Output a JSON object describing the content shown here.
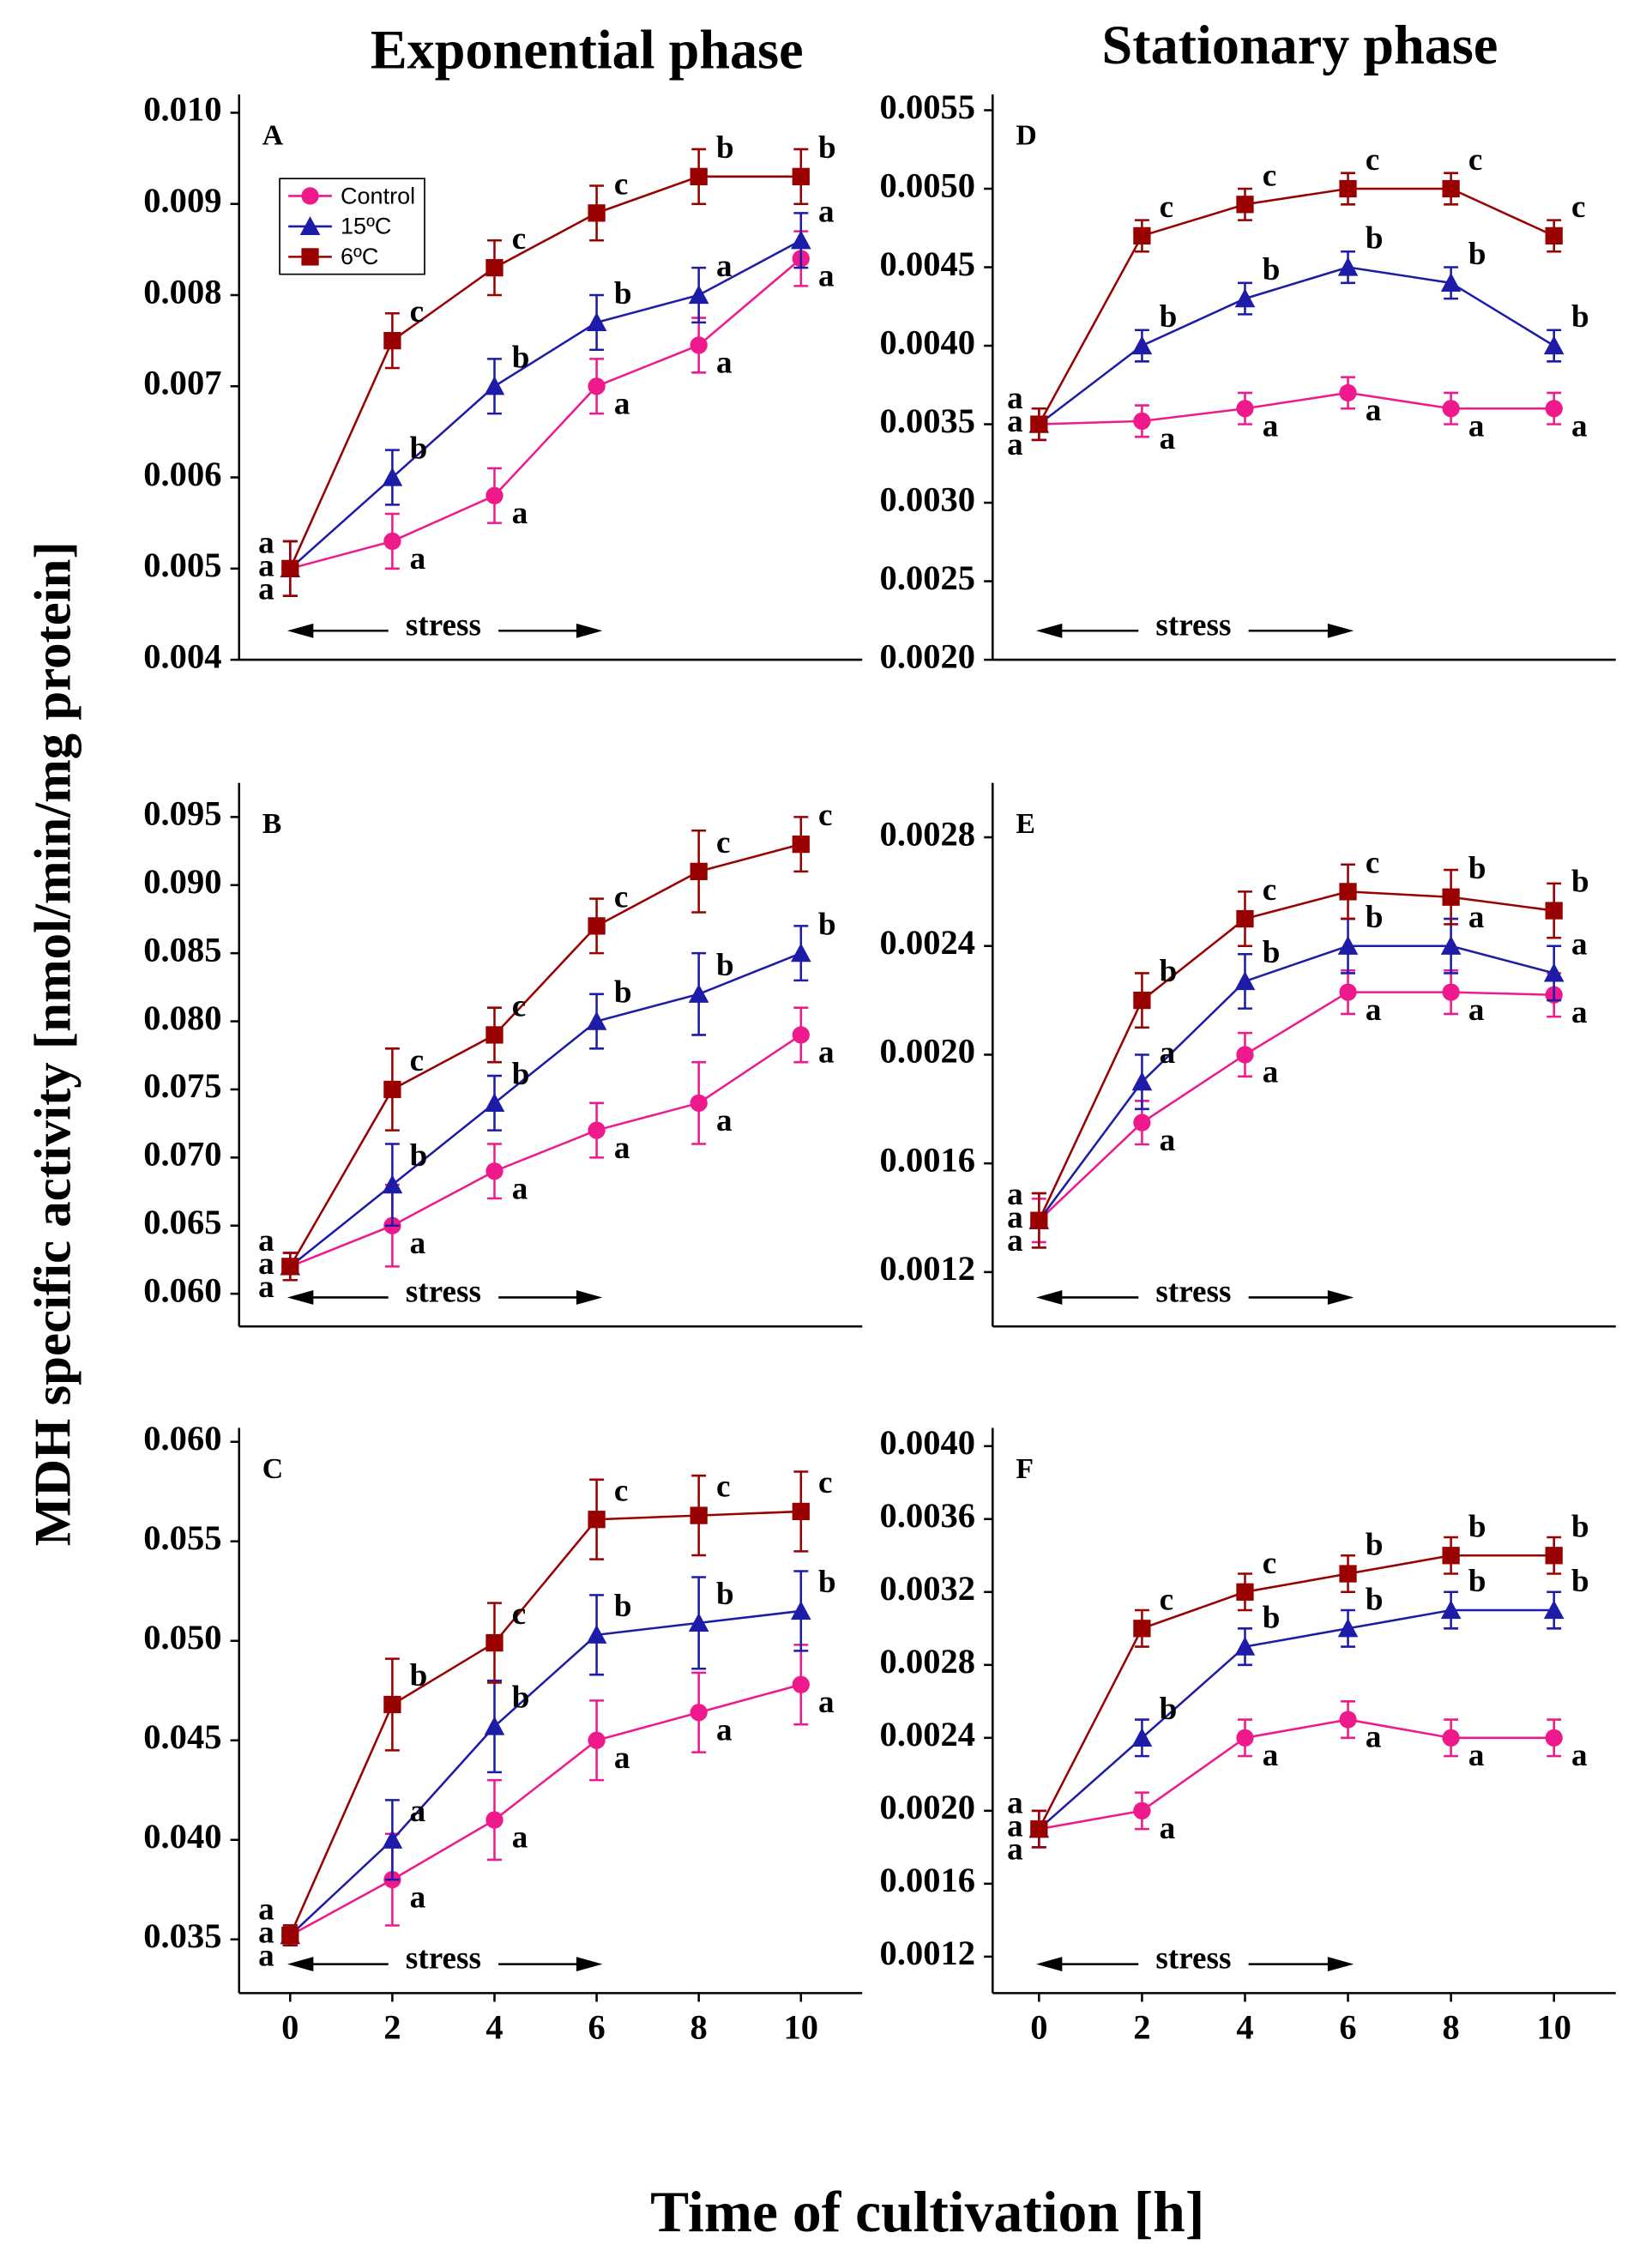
{
  "column_titles": [
    "Exponential phase",
    "Stationary phase"
  ],
  "y_label": "MDH specific activity [nmol/min/mg protein]",
  "x_label": "Time of cultivation [h]",
  "chart_data": [
    {
      "type": "line",
      "panel_label": "A",
      "annotation": "stress",
      "legend": "upper left",
      "x": [
        0,
        2,
        4,
        6,
        8,
        10
      ],
      "xlim": [
        -1,
        11.2
      ],
      "ylim": [
        0.004,
        0.0102
      ],
      "yticks": [
        0.004,
        0.005,
        0.006,
        0.007,
        0.008,
        0.009,
        {
          "value": 0.01,
          "label": "0.010"
        }
      ],
      "series": [
        {
          "name": "Control",
          "color": "#ee1a8c",
          "marker": "circle",
          "values": [
            0.005,
            0.0053,
            0.0058,
            0.007,
            0.00745,
            0.0084
          ],
          "errors": [
            0.0003,
            0.0003,
            0.0003,
            0.0003,
            0.0003,
            0.0003
          ],
          "letters": [
            "a",
            "a",
            "a",
            "a",
            "a",
            "a"
          ]
        },
        {
          "name": "15ºC",
          "color": "#1c1ca8",
          "marker": "triangle",
          "values": [
            0.005,
            0.006,
            0.007,
            0.0077,
            0.008,
            0.0086
          ],
          "errors": [
            0.0003,
            0.0003,
            0.0003,
            0.0003,
            0.0003,
            0.0003
          ],
          "letters": [
            "a",
            "b",
            "b",
            "b",
            "a",
            "a"
          ]
        },
        {
          "name": "6ºC",
          "color": "#990000",
          "marker": "square",
          "values": [
            0.005,
            0.0075,
            0.0083,
            0.0089,
            0.0093,
            0.0093
          ],
          "errors": [
            0.0003,
            0.0003,
            0.0003,
            0.0003,
            0.0003,
            0.0003
          ],
          "letters": [
            "a",
            "c",
            "c",
            "c",
            "b",
            "b"
          ]
        }
      ]
    },
    {
      "type": "line",
      "panel_label": "B",
      "annotation": "stress",
      "x": [
        0,
        2,
        4,
        6,
        8,
        10
      ],
      "xlim": [
        -1,
        11.2
      ],
      "ylim": [
        0.0576,
        0.0975
      ],
      "yticks": [
        {
          "value": 0.06,
          "label": "0.060"
        },
        0.065,
        {
          "value": 0.07,
          "label": "0.070"
        },
        0.075,
        {
          "value": 0.08,
          "label": "0.080"
        },
        0.085,
        {
          "value": 0.09,
          "label": "0.090"
        },
        0.095
      ],
      "series": [
        {
          "color": "#ee1a8c",
          "marker": "circle",
          "values": [
            0.062,
            0.065,
            0.069,
            0.072,
            0.074,
            0.079
          ],
          "errors": [
            0.001,
            0.003,
            0.002,
            0.002,
            0.003,
            0.002
          ],
          "letters": [
            "a",
            "a",
            "a",
            "a",
            "a",
            "a"
          ]
        },
        {
          "color": "#1c1ca8",
          "marker": "triangle",
          "values": [
            0.062,
            0.068,
            0.074,
            0.08,
            0.082,
            0.085
          ],
          "errors": [
            0.001,
            0.003,
            0.002,
            0.002,
            0.003,
            0.002
          ],
          "letters": [
            "a",
            "b",
            "b",
            "b",
            "b",
            "b"
          ]
        },
        {
          "color": "#990000",
          "marker": "square",
          "values": [
            0.062,
            0.075,
            0.079,
            0.087,
            0.091,
            0.093
          ],
          "errors": [
            0.001,
            0.003,
            0.002,
            0.002,
            0.003,
            0.002
          ],
          "letters": [
            "a",
            "c",
            "c",
            "c",
            "c",
            "c"
          ]
        }
      ]
    },
    {
      "type": "line",
      "panel_label": "C",
      "annotation": "stress",
      "x": [
        0,
        2,
        4,
        6,
        8,
        10
      ],
      "xlim": [
        -1,
        11.2
      ],
      "xticks": [
        0,
        2,
        4,
        6,
        8,
        10
      ],
      "ylim": [
        0.0323,
        0.0607
      ],
      "yticks": [
        0.035,
        {
          "value": 0.04,
          "label": "0.040"
        },
        0.045,
        {
          "value": 0.05,
          "label": "0.050"
        },
        0.055,
        {
          "value": 0.06,
          "label": "0.060"
        }
      ],
      "series": [
        {
          "color": "#ee1a8c",
          "marker": "circle",
          "values": [
            0.0352,
            0.038,
            0.041,
            0.045,
            0.0464,
            0.0478
          ],
          "errors": [
            0.0005,
            0.0023,
            0.002,
            0.002,
            0.002,
            0.002
          ],
          "letters": [
            "a",
            "a",
            "a",
            "a",
            "a",
            "a"
          ]
        },
        {
          "color": "#1c1ca8",
          "marker": "triangle",
          "values": [
            0.0352,
            0.04,
            0.0457,
            0.0503,
            0.0509,
            0.0515
          ],
          "errors": [
            0.0005,
            0.002,
            0.0023,
            0.002,
            0.0023,
            0.002
          ],
          "letters": [
            "a",
            "a",
            "b",
            "b",
            "b",
            "b"
          ]
        },
        {
          "color": "#990000",
          "marker": "square",
          "values": [
            0.0352,
            0.0468,
            0.0499,
            0.0561,
            0.0563,
            0.0565
          ],
          "errors": [
            0.0005,
            0.0023,
            0.002,
            0.002,
            0.002,
            0.002
          ],
          "letters": [
            "a",
            "b",
            "c",
            "c",
            "c",
            "c"
          ]
        }
      ]
    },
    {
      "type": "line",
      "panel_label": "D",
      "annotation": "stress",
      "x": [
        0,
        2,
        4,
        6,
        8,
        10
      ],
      "xlim": [
        -0.9,
        11.2
      ],
      "ylim": [
        0.002,
        0.0056
      ],
      "yticks": [
        {
          "value": 0.002,
          "label": "0.0020"
        },
        0.0025,
        {
          "value": 0.003,
          "label": "0.0030"
        },
        0.0035,
        {
          "value": 0.004,
          "label": "0.0040"
        },
        0.0045,
        {
          "value": 0.005,
          "label": "0.0050"
        },
        0.0055
      ],
      "series": [
        {
          "color": "#ee1a8c",
          "marker": "circle",
          "values": [
            0.0035,
            0.00352,
            0.0036,
            0.0037,
            0.0036,
            0.0036
          ],
          "errors": [
            0.0001,
            0.0001,
            0.0001,
            0.0001,
            0.0001,
            0.0001
          ],
          "letters": [
            "a",
            "a",
            "a",
            "a",
            "a",
            "a"
          ]
        },
        {
          "color": "#1c1ca8",
          "marker": "triangle",
          "values": [
            0.0035,
            0.004,
            0.0043,
            0.0045,
            0.0044,
            0.004
          ],
          "errors": [
            0.0001,
            0.0001,
            0.0001,
            0.0001,
            0.0001,
            0.0001
          ],
          "letters": [
            "a",
            "b",
            "b",
            "b",
            "b",
            "b"
          ]
        },
        {
          "color": "#990000",
          "marker": "square",
          "values": [
            0.0035,
            0.0047,
            0.0049,
            0.005,
            0.005,
            0.0047
          ],
          "errors": [
            0.0001,
            0.0001,
            0.0001,
            0.0001,
            0.0001,
            0.0001
          ],
          "letters": [
            "a",
            "c",
            "c",
            "c",
            "c",
            "c"
          ]
        }
      ]
    },
    {
      "type": "line",
      "panel_label": "E",
      "annotation": "stress",
      "x": [
        0,
        2,
        4,
        6,
        8,
        10
      ],
      "xlim": [
        -0.9,
        11.2
      ],
      "ylim": [
        0.001,
        0.003
      ],
      "yticks": [
        0.0012,
        0.0016,
        {
          "value": 0.002,
          "label": "0.0020"
        },
        0.0024,
        0.0028
      ],
      "series": [
        {
          "color": "#ee1a8c",
          "marker": "circle",
          "values": [
            0.00139,
            0.00175,
            0.002,
            0.00223,
            0.00223,
            0.00222
          ],
          "errors": [
            8e-05,
            8e-05,
            8e-05,
            8e-05,
            8e-05,
            8e-05
          ],
          "letters": [
            "a",
            "a",
            "a",
            "a",
            "a",
            "a"
          ]
        },
        {
          "color": "#1c1ca8",
          "marker": "triangle",
          "values": [
            0.00139,
            0.0019,
            0.00227,
            0.0024,
            0.0024,
            0.0023
          ],
          "errors": [
            0.0001,
            0.0001,
            0.0001,
            0.0001,
            0.0001,
            0.0001
          ],
          "letters": [
            "a",
            "a",
            "b",
            "b",
            "a",
            "a"
          ]
        },
        {
          "color": "#990000",
          "marker": "square",
          "values": [
            0.00139,
            0.0022,
            0.0025,
            0.0026,
            0.00258,
            0.00253
          ],
          "errors": [
            0.0001,
            0.0001,
            0.0001,
            0.0001,
            0.0001,
            0.0001
          ],
          "letters": [
            "a",
            "b",
            "c",
            "c",
            "b",
            "b"
          ]
        }
      ]
    },
    {
      "type": "line",
      "panel_label": "F",
      "annotation": "stress",
      "x": [
        0,
        2,
        4,
        6,
        8,
        10
      ],
      "xlim": [
        -0.9,
        11.2
      ],
      "xticks": [
        0,
        2,
        4,
        6,
        8,
        10
      ],
      "ylim": [
        0.001,
        0.0041
      ],
      "yticks": [
        0.0012,
        0.0016,
        {
          "value": 0.002,
          "label": "0.0020"
        },
        0.0024,
        0.0028,
        0.0032,
        0.0036,
        {
          "value": 0.004,
          "label": "0.0040"
        }
      ],
      "series": [
        {
          "color": "#ee1a8c",
          "marker": "circle",
          "values": [
            0.0019,
            0.002,
            0.0024,
            0.0025,
            0.0024,
            0.0024
          ],
          "errors": [
            0.0001,
            0.0001,
            0.0001,
            0.0001,
            0.0001,
            0.0001
          ],
          "letters": [
            "a",
            "a",
            "a",
            "a",
            "a",
            "a"
          ]
        },
        {
          "color": "#1c1ca8",
          "marker": "triangle",
          "values": [
            0.0019,
            0.0024,
            0.0029,
            0.003,
            0.0031,
            0.0031
          ],
          "errors": [
            0.0001,
            0.0001,
            0.0001,
            0.0001,
            0.0001,
            0.0001
          ],
          "letters": [
            "a",
            "b",
            "b",
            "b",
            "b",
            "b"
          ]
        },
        {
          "color": "#990000",
          "marker": "square",
          "values": [
            0.0019,
            0.003,
            0.0032,
            0.0033,
            0.0034,
            0.0034
          ],
          "errors": [
            0.0001,
            0.0001,
            0.0001,
            0.0001,
            0.0001,
            0.0001
          ],
          "letters": [
            "a",
            "c",
            "c",
            "b",
            "b",
            "b"
          ]
        }
      ]
    }
  ]
}
